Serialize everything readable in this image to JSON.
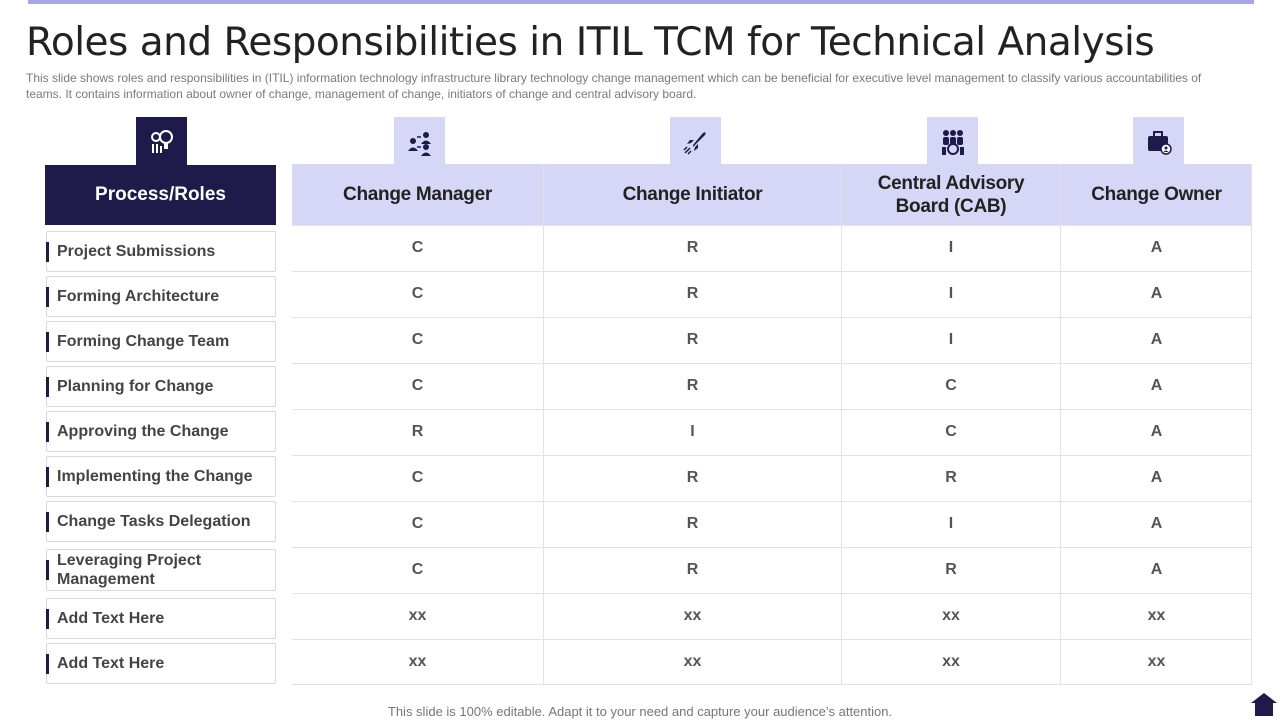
{
  "title": "Roles and Responsibilities in ITIL TCM for Technical Analysis",
  "subtitle": "This slide shows roles and responsibilities in (ITIL)  information technology infrastructure library technology change management which can be beneficial for executive level management to classify various accountabilities of teams. It contains information  about owner of change, management of change, initiators of change and central advisory board.",
  "roles_header": "Process/Roles",
  "columns": [
    "Change Manager",
    "Change Initiator",
    "Central Advisory Board (CAB)",
    "Change Owner"
  ],
  "rows": [
    {
      "role": "Project Submissions",
      "values": [
        "C",
        "R",
        "I",
        "A"
      ]
    },
    {
      "role": "Forming Architecture",
      "values": [
        "C",
        "R",
        "I",
        "A"
      ]
    },
    {
      "role": "Forming Change Team",
      "values": [
        "C",
        "R",
        "I",
        "A"
      ]
    },
    {
      "role": "Planning for Change",
      "values": [
        "C",
        "R",
        "C",
        "A"
      ]
    },
    {
      "role": "Approving the Change",
      "values": [
        "R",
        "I",
        "C",
        "A"
      ]
    },
    {
      "role": "Implementing the Change",
      "values": [
        "C",
        "R",
        "R",
        "A"
      ]
    },
    {
      "role": "Change Tasks Delegation",
      "values": [
        "C",
        "R",
        "I",
        "A"
      ]
    },
    {
      "role": "Leveraging Project Management",
      "values": [
        "C",
        "R",
        "R",
        "A"
      ]
    },
    {
      "role": "Add Text Here",
      "values": [
        "xx",
        "xx",
        "xx",
        "xx"
      ]
    },
    {
      "role": "Add Text Here",
      "values": [
        "xx",
        "xx",
        "xx",
        "xx"
      ]
    }
  ],
  "icons": {
    "roles": "process-lightbulb-icon",
    "change_manager": "organization-people-icon",
    "change_initiator": "rocket-launch-icon",
    "cab": "group-meeting-icon",
    "change_owner": "briefcase-user-icon"
  },
  "footer": "This slide is 100% editable. Adapt it to your need and capture your audience’s attention.",
  "colors": {
    "dark": "#1e1b4b",
    "light": "#d6d6f7",
    "accent_bar": "#a6a6e8"
  }
}
